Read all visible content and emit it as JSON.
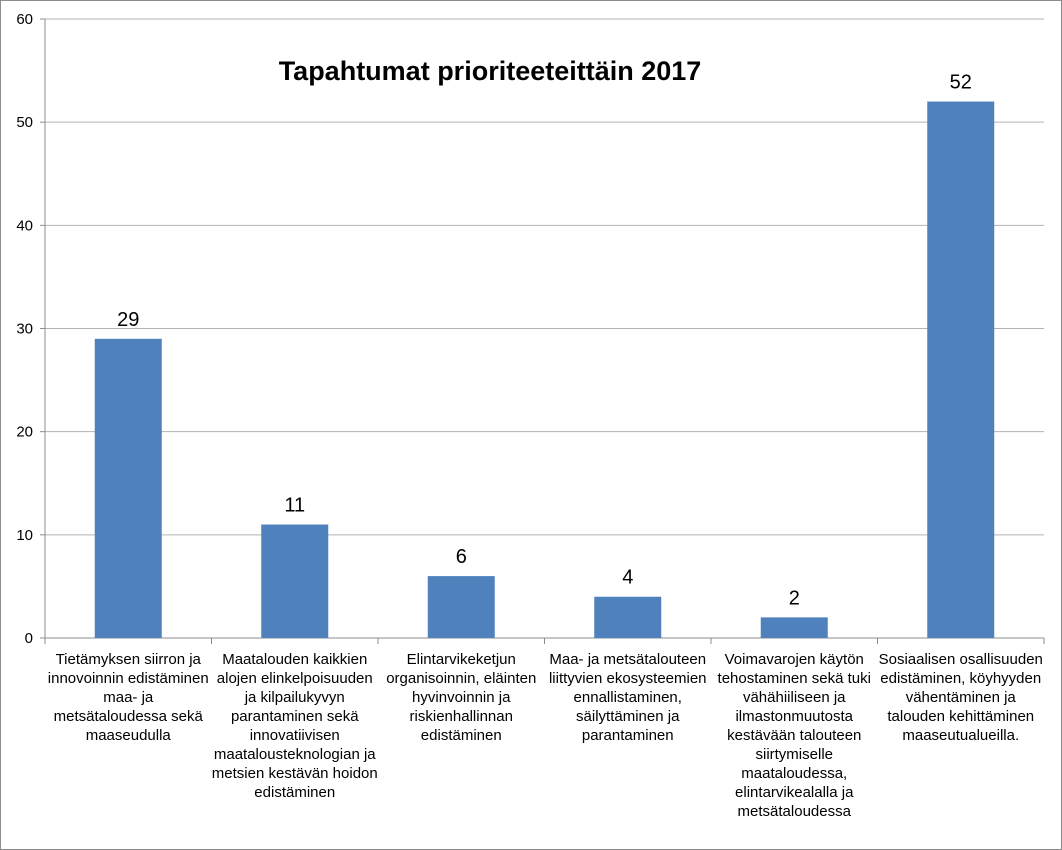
{
  "chart_data": {
    "type": "bar",
    "title": "Tapahtumat prioriteeteittäin 2017",
    "xlabel": "",
    "ylabel": "",
    "ylim": [
      0,
      60
    ],
    "yticks": [
      0,
      10,
      20,
      30,
      40,
      50,
      60
    ],
    "grid": true,
    "legend": "none",
    "bar_color": "#4f81bd",
    "categories": [
      "Tietämyksen siirron ja innovoinnin edistäminen maa- ja metsätaloudessa sekä maaseudulla",
      "Maatalouden kaikkien alojen elinkelpoisuuden ja kilpailukyvyn parantaminen sekä innovatiivisen maatalousteknologian ja metsien kestävän hoidon edistäminen",
      "Elintarvikeketjun organisoinnin, eläinten hyvinvoinnin ja riskienhallinnan edistäminen",
      "Maa- ja metsätalouteen liittyvien ekosysteemien ennallistaminen, säilyttäminen ja parantaminen",
      "Voimavarojen käytön tehostaminen sekä tuki vähähiiliseen ja ilmastonmuutosta kestävään talouteen siirtymiselle maataloudessa, elintarvikealalla ja metsätaloudessa",
      "Sosiaalisen osallisuuden edistäminen, köyhyyden vähentäminen ja talouden kehittäminen maaseutualueilla."
    ],
    "values": [
      29,
      11,
      6,
      4,
      2,
      52
    ]
  }
}
